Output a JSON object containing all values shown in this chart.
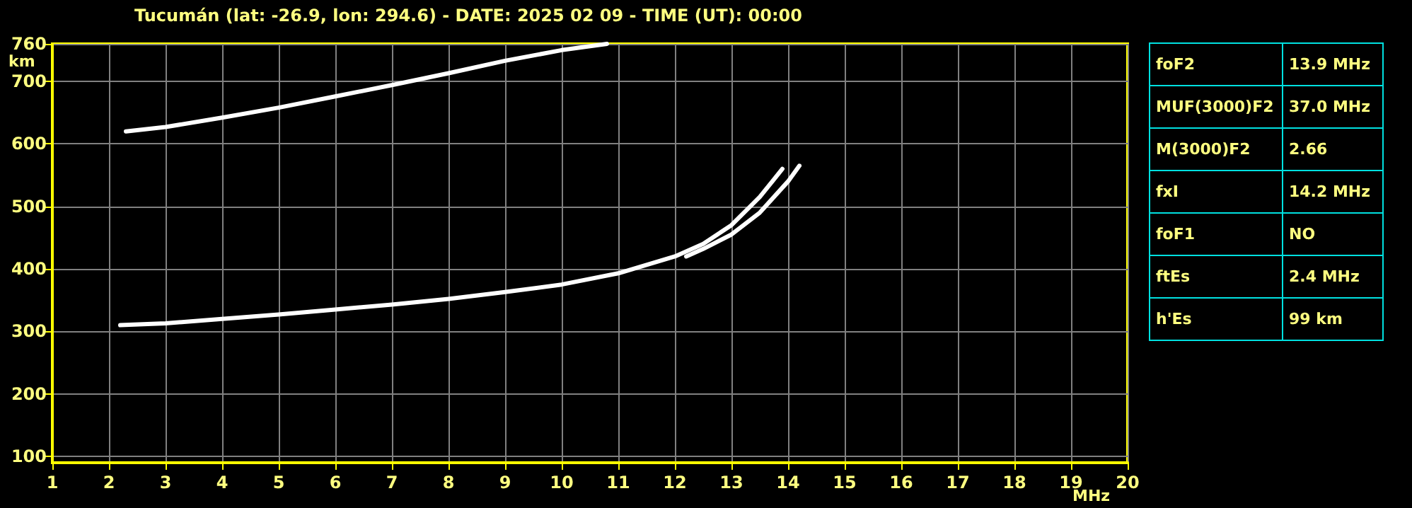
{
  "chart_data": [
    {
      "type": "line",
      "title": "Tucumán (lat: -26.9, lon: 294.6) - DATE: 2025 02 09 - TIME (UT): 00:00",
      "xlabel": "MHz",
      "ylabel": "km",
      "xlim": [
        1,
        20
      ],
      "xticks": [
        1,
        2,
        3,
        4,
        5,
        6,
        7,
        8,
        9,
        10,
        11,
        12,
        13,
        14,
        15,
        16,
        17,
        18,
        19,
        20
      ],
      "ylim": [
        90,
        760
      ],
      "yticks": [
        100,
        200,
        300,
        400,
        500,
        600,
        700,
        760
      ],
      "grid": true,
      "marker": "none",
      "line_style": "solid",
      "series": [
        {
          "color": "#ffffff",
          "x": [
            2.2,
            3,
            4,
            5,
            6,
            7,
            8,
            9,
            10,
            11,
            12,
            12.5,
            13,
            13.5,
            13.9
          ],
          "values": [
            310,
            313,
            320,
            327,
            335,
            343,
            352,
            363,
            375,
            393,
            420,
            440,
            470,
            515,
            560
          ]
        },
        {
          "color": "#ffffff",
          "x": [
            12.2,
            12.5,
            13,
            13.5,
            14,
            14.2
          ],
          "values": [
            420,
            432,
            455,
            490,
            540,
            565
          ]
        },
        {
          "color": "#ffffff",
          "x": [
            2.3,
            3,
            4,
            5,
            6,
            7,
            8,
            9,
            10,
            10.8
          ],
          "values": [
            620,
            627,
            642,
            658,
            676,
            694,
            713,
            733,
            750,
            760
          ]
        }
      ]
    },
    {
      "type": "other",
      "annotations": [
        "foF2",
        "13.9 MHz",
        "MUF(3000)F2",
        "37.0 MHz",
        "M(3000)F2",
        "2.66",
        "fxI",
        "14.2 MHz",
        "foF1",
        "NO",
        "ftEs",
        "2.4 MHz",
        "h'Es",
        "99 km"
      ]
    }
  ]
}
